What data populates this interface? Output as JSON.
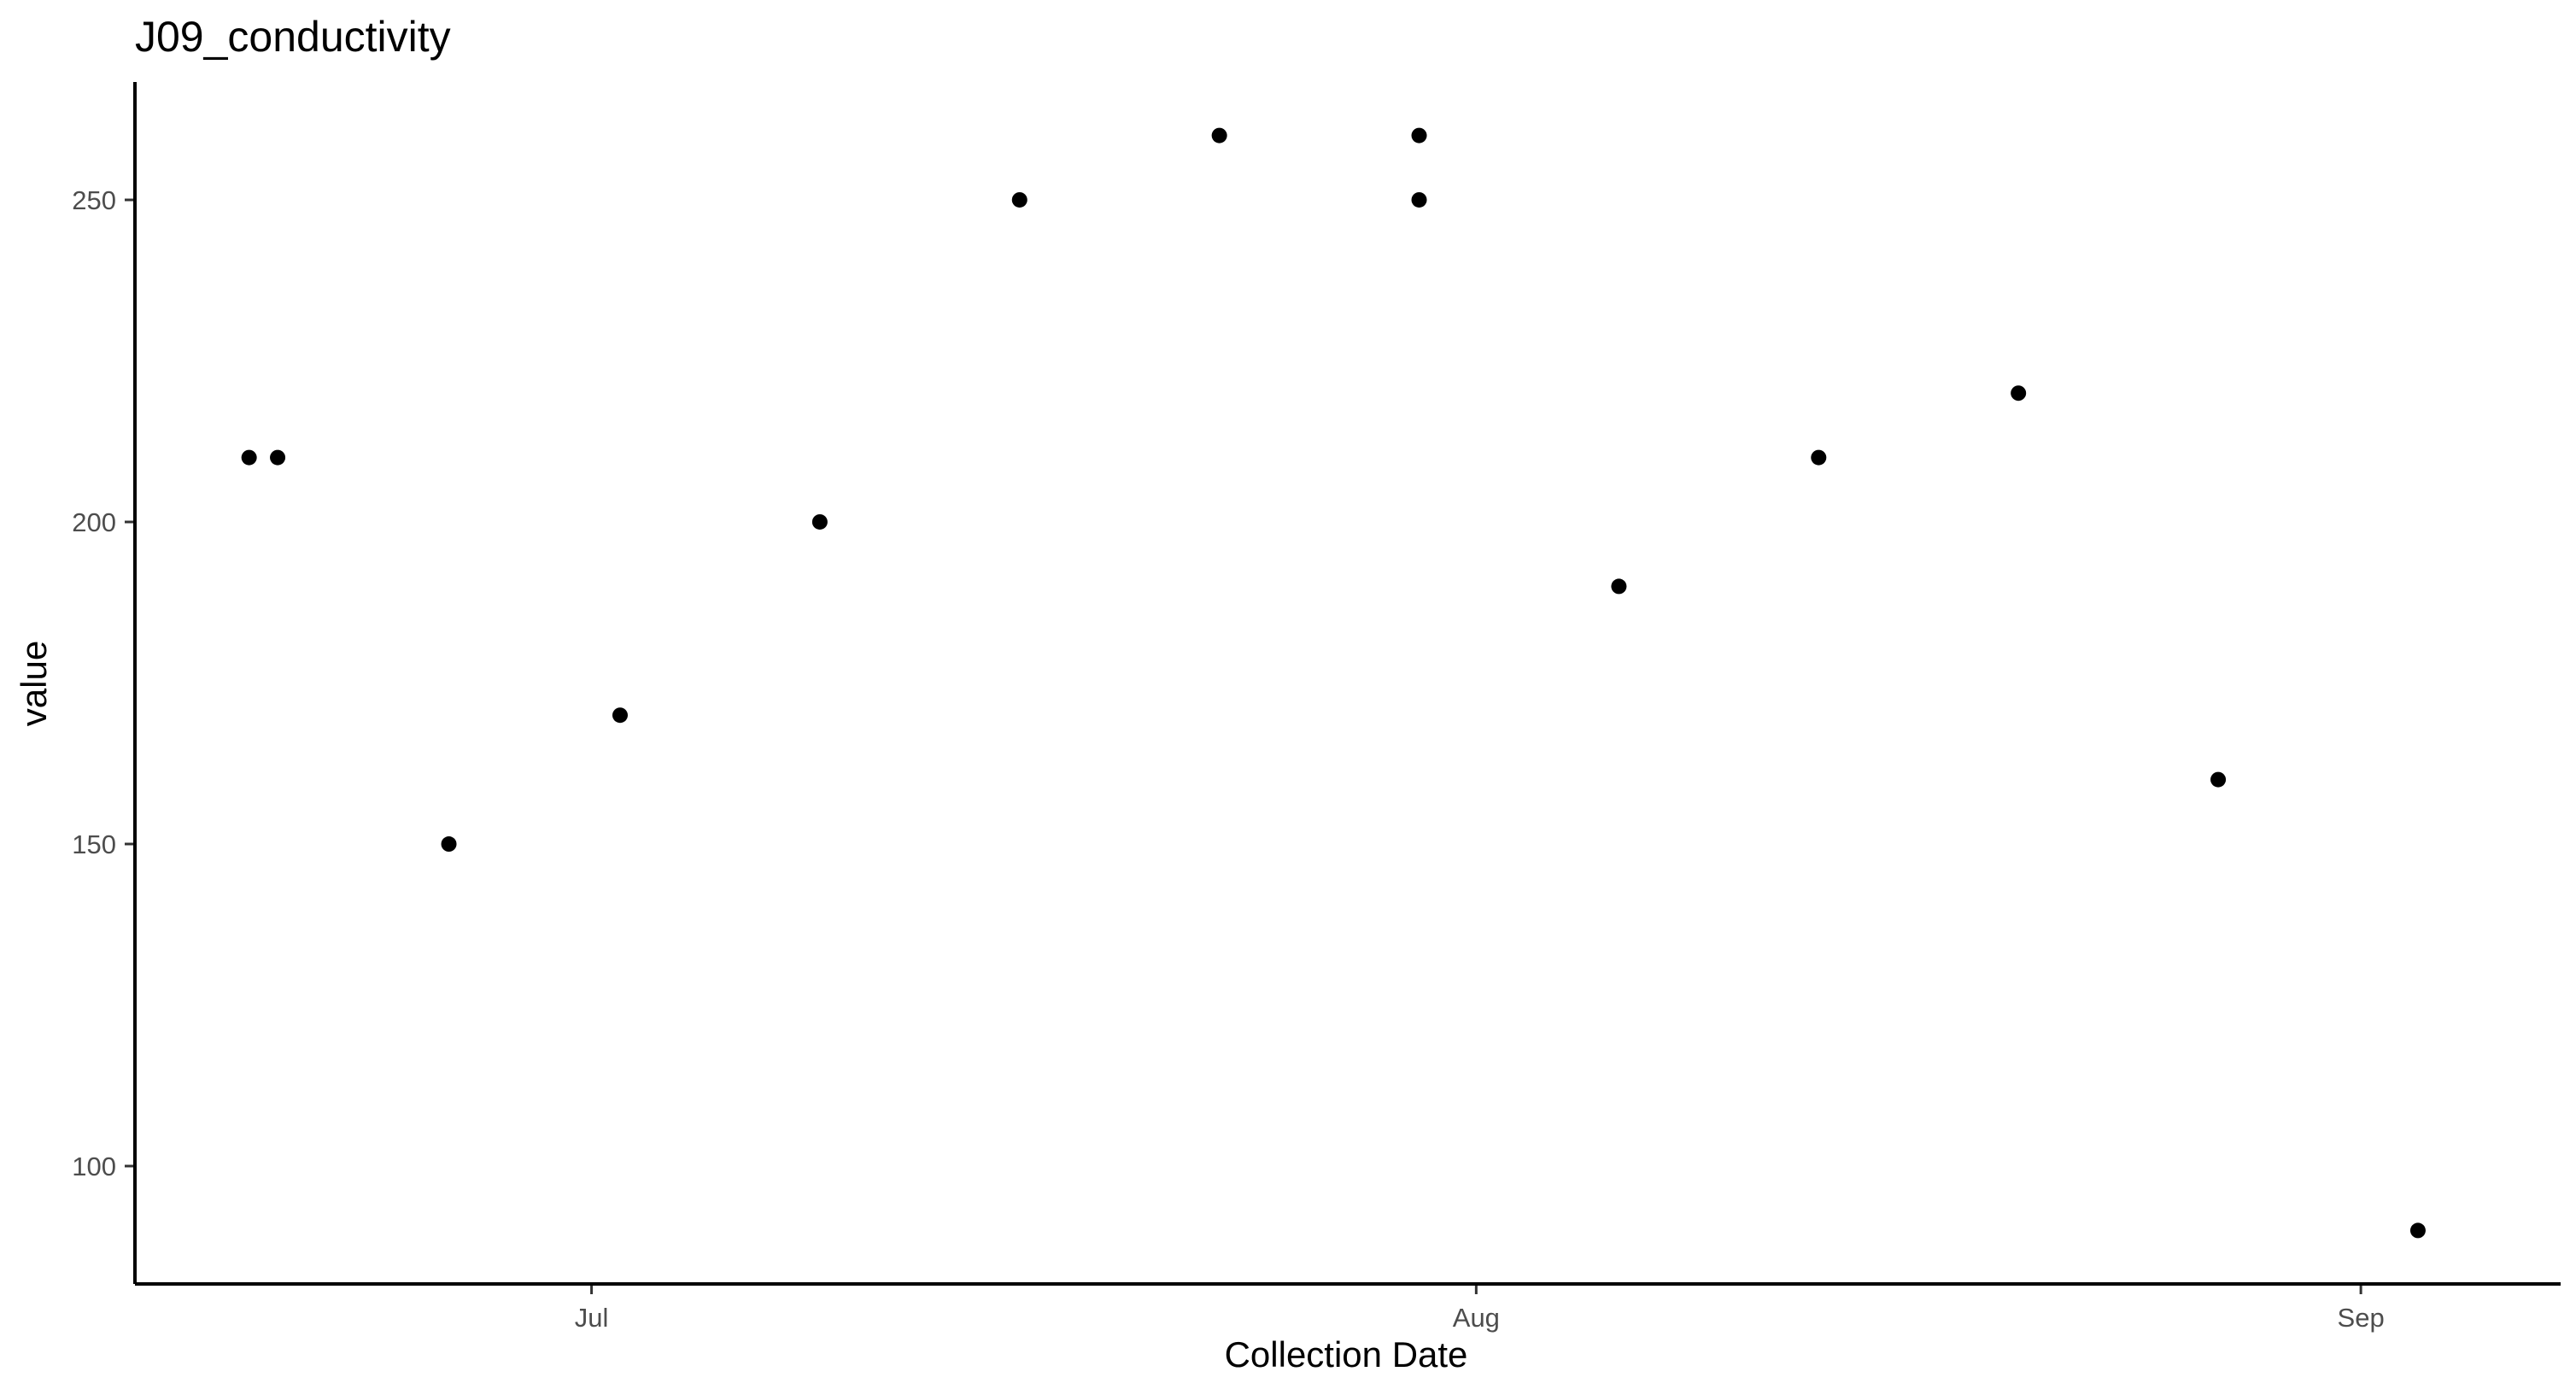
{
  "chart_data": {
    "type": "scatter",
    "title": "J09_conductivity",
    "xlabel": "Collection Date",
    "ylabel": "value",
    "x_axis_type": "date",
    "xlim": [
      "2024-06-15",
      "2024-09-08"
    ],
    "ylim": [
      81.7,
      268.3
    ],
    "x_ticks": [
      {
        "label": "Jul",
        "date": "2024-07-01"
      },
      {
        "label": "Aug",
        "date": "2024-08-01"
      },
      {
        "label": "Sep",
        "date": "2024-09-01"
      }
    ],
    "y_ticks": [
      100,
      150,
      200,
      250
    ],
    "grid": false,
    "legend": "none",
    "point_color": "#000000",
    "points": [
      {
        "x": "2024-06-19",
        "y": 210
      },
      {
        "x": "2024-06-20",
        "y": 210
      },
      {
        "x": "2024-06-26",
        "y": 150
      },
      {
        "x": "2024-07-02",
        "y": 170
      },
      {
        "x": "2024-07-09",
        "y": 200
      },
      {
        "x": "2024-07-16",
        "y": 250
      },
      {
        "x": "2024-07-23",
        "y": 260
      },
      {
        "x": "2024-07-30",
        "y": 250
      },
      {
        "x": "2024-07-30",
        "y": 260
      },
      {
        "x": "2024-08-06",
        "y": 190
      },
      {
        "x": "2024-08-13",
        "y": 210
      },
      {
        "x": "2024-08-20",
        "y": 220
      },
      {
        "x": "2024-08-27",
        "y": 160
      },
      {
        "x": "2024-09-03",
        "y": 90
      }
    ]
  }
}
